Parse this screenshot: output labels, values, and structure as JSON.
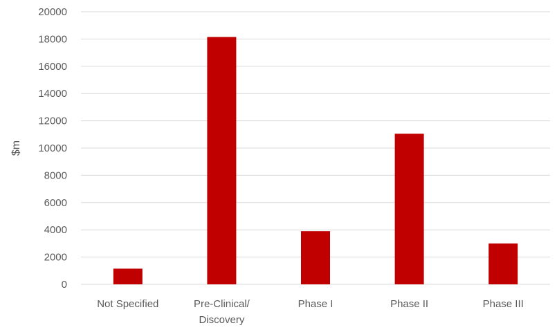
{
  "chart_data": {
    "type": "bar",
    "categories": [
      "Not Specified",
      "Pre-Clinical/\nDiscovery",
      "Phase I",
      "Phase II",
      "Phase III"
    ],
    "values": [
      1150,
      18150,
      3900,
      11050,
      3000
    ],
    "xlabel": "",
    "ylabel": "$m",
    "ylim": [
      0,
      20000
    ],
    "yticks": [
      "0",
      "2000",
      "4000",
      "6000",
      "8000",
      "10000",
      "12000",
      "14000",
      "16000",
      "18000",
      "20000"
    ],
    "grid": true,
    "legend": "none",
    "bar_color": "#c00000"
  }
}
